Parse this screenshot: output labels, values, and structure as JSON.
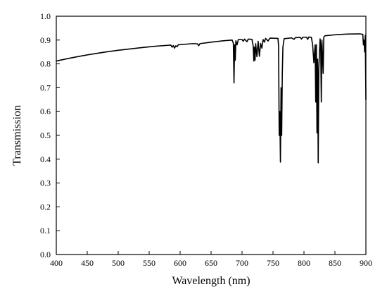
{
  "chart_data": {
    "type": "line",
    "title": "",
    "xlabel": "Wavelength (nm)",
    "ylabel": "Transmission",
    "xlim": [
      400,
      900
    ],
    "ylim": [
      0.0,
      1.0
    ],
    "xticks": [
      "400",
      "450",
      "500",
      "550",
      "600",
      "650",
      "700",
      "750",
      "800",
      "850",
      "900"
    ],
    "yticks": [
      "0.0",
      "0.1",
      "0.2",
      "0.3",
      "0.4",
      "0.5",
      "0.6",
      "0.7",
      "0.8",
      "0.9",
      "1.0"
    ],
    "grid": false,
    "legend": "none",
    "series": [
      {
        "color": "#000000",
        "points": [
          [
            400,
            0.812
          ],
          [
            420,
            0.823
          ],
          [
            440,
            0.833
          ],
          [
            460,
            0.842
          ],
          [
            480,
            0.85
          ],
          [
            500,
            0.857
          ],
          [
            520,
            0.863
          ],
          [
            540,
            0.869
          ],
          [
            560,
            0.874
          ],
          [
            580,
            0.878
          ],
          [
            585,
            0.879
          ],
          [
            587,
            0.87
          ],
          [
            589,
            0.877
          ],
          [
            591,
            0.866
          ],
          [
            593,
            0.876
          ],
          [
            595,
            0.872
          ],
          [
            597,
            0.88
          ],
          [
            620,
            0.885
          ],
          [
            628,
            0.884
          ],
          [
            630,
            0.876
          ],
          [
            632,
            0.885
          ],
          [
            650,
            0.891
          ],
          [
            670,
            0.897
          ],
          [
            684,
            0.9
          ],
          [
            686,
            0.886
          ],
          [
            687,
            0.72
          ],
          [
            688,
            0.88
          ],
          [
            689,
            0.815
          ],
          [
            690,
            0.897
          ],
          [
            692,
            0.88
          ],
          [
            694,
            0.902
          ],
          [
            700,
            0.902
          ],
          [
            702,
            0.895
          ],
          [
            704,
            0.904
          ],
          [
            708,
            0.893
          ],
          [
            710,
            0.904
          ],
          [
            716,
            0.903
          ],
          [
            718,
            0.875
          ],
          [
            719,
            0.812
          ],
          [
            720,
            0.87
          ],
          [
            721,
            0.815
          ],
          [
            722,
            0.885
          ],
          [
            724,
            0.83
          ],
          [
            726,
            0.895
          ],
          [
            728,
            0.832
          ],
          [
            730,
            0.886
          ],
          [
            732,
            0.866
          ],
          [
            734,
            0.902
          ],
          [
            736,
            0.891
          ],
          [
            738,
            0.907
          ],
          [
            742,
            0.896
          ],
          [
            745,
            0.908
          ],
          [
            758,
            0.907
          ],
          [
            759,
            0.875
          ],
          [
            760,
            0.5
          ],
          [
            761,
            0.6
          ],
          [
            762,
            0.388
          ],
          [
            763,
            0.7
          ],
          [
            764,
            0.5
          ],
          [
            765,
            0.76
          ],
          [
            766,
            0.87
          ],
          [
            768,
            0.906
          ],
          [
            780,
            0.909
          ],
          [
            784,
            0.903
          ],
          [
            786,
            0.91
          ],
          [
            794,
            0.911
          ],
          [
            796,
            0.904
          ],
          [
            798,
            0.912
          ],
          [
            804,
            0.912
          ],
          [
            806,
            0.903
          ],
          [
            808,
            0.913
          ],
          [
            812,
            0.911
          ],
          [
            814,
            0.88
          ],
          [
            816,
            0.805
          ],
          [
            818,
            0.88
          ],
          [
            819,
            0.64
          ],
          [
            820,
            0.88
          ],
          [
            821,
            0.51
          ],
          [
            822,
            0.82
          ],
          [
            823,
            0.385
          ],
          [
            824,
            0.78
          ],
          [
            826,
            0.905
          ],
          [
            827,
            0.88
          ],
          [
            828,
            0.64
          ],
          [
            829,
            0.9
          ],
          [
            831,
            0.76
          ],
          [
            832,
            0.912
          ],
          [
            834,
            0.918
          ],
          [
            850,
            0.922
          ],
          [
            870,
            0.925
          ],
          [
            890,
            0.926
          ],
          [
            895,
            0.924
          ],
          [
            896,
            0.88
          ],
          [
            897,
            0.9
          ],
          [
            898,
            0.85
          ],
          [
            899,
            0.92
          ],
          [
            900,
            0.65
          ]
        ]
      }
    ]
  }
}
